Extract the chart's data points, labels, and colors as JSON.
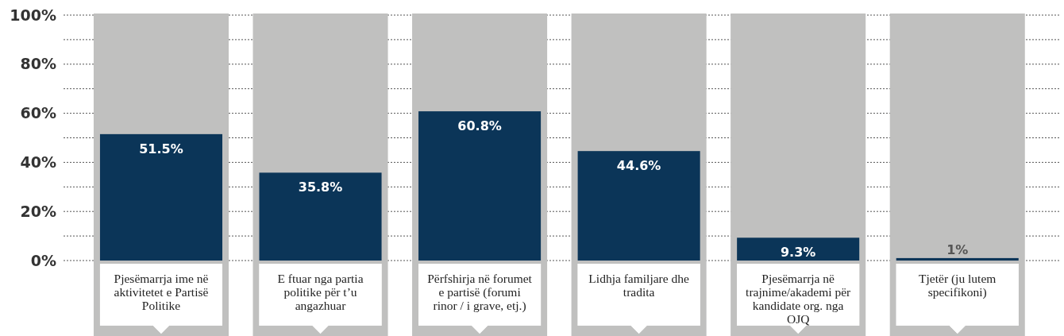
{
  "chart_data": {
    "type": "bar",
    "categories": [
      "Pjesëmarrja ime në aktivitetet e Partisë Politike",
      "E ftuar nga partia politike për t’u angazhuar",
      "Përfshirja në forumet e partisë (forumi rinor / i grave, etj.)",
      "Lidhja familjare dhe tradita",
      "Pjesëmarrja në trajnime/akademi për kandidate org. nga OJQ",
      "Tjetër (ju lutem specifikoni)"
    ],
    "series": [
      {
        "color": "#c0c0bf",
        "values": [
          100,
          100,
          100,
          100,
          100,
          100
        ]
      },
      {
        "color": "#0b3558",
        "values": [
          51.5,
          35.8,
          60.8,
          44.6,
          9.3,
          1
        ],
        "value_labels": [
          "51.5%",
          "35.8%",
          "60.8%",
          "44.6%",
          "9.3%",
          "1%"
        ]
      }
    ],
    "ylim": [
      0,
      100
    ],
    "yticks": [
      {
        "value": 0,
        "label": "0%"
      },
      {
        "value": 10,
        "label": null
      },
      {
        "value": 20,
        "label": "20%"
      },
      {
        "value": 30,
        "label": null
      },
      {
        "value": 40,
        "label": "40%"
      },
      {
        "value": 50,
        "label": null
      },
      {
        "value": 60,
        "label": "60%"
      },
      {
        "value": 70,
        "label": null
      },
      {
        "value": 80,
        "label": "80%"
      },
      {
        "value": 90,
        "label": null
      },
      {
        "value": 100,
        "label": "100%"
      }
    ],
    "grid": true
  }
}
